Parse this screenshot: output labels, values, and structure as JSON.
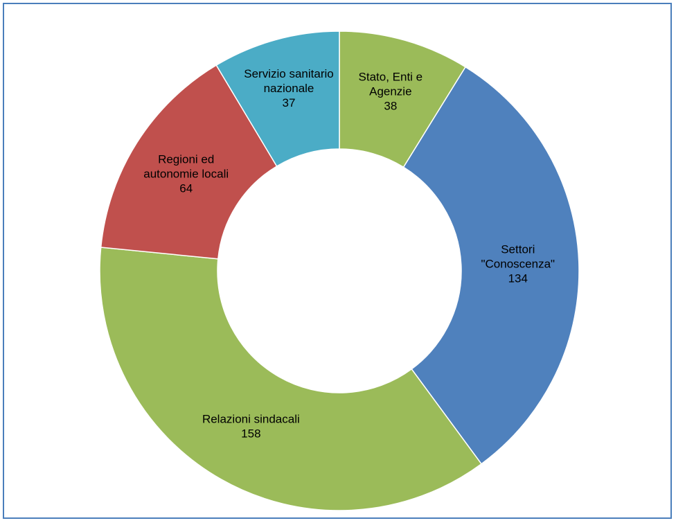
{
  "chart_data": {
    "type": "pie",
    "donut": true,
    "title": "",
    "start_angle_deg": 0,
    "direction": "clockwise",
    "slices": [
      {
        "label_lines": [
          "Stato, Enti e",
          "Agenzie"
        ],
        "value": 38,
        "value_label": "38",
        "color": "#9bbb59"
      },
      {
        "label_lines": [
          "Settori",
          "\"Conoscenza\""
        ],
        "value": 134,
        "value_label": "134",
        "color": "#4f81bd"
      },
      {
        "label_lines": [
          "Relazioni sindacali"
        ],
        "value": 158,
        "value_label": "158",
        "color": "#9bbb59"
      },
      {
        "label_lines": [
          "Regioni ed",
          "autonomie locali"
        ],
        "value": 64,
        "value_label": "64",
        "color": "#c0504d"
      },
      {
        "label_lines": [
          "Servizio sanitario",
          "nazionale"
        ],
        "value": 37,
        "value_label": "37",
        "color": "#4bacc6"
      }
    ]
  },
  "colors": {
    "frame_border": "#4a7ebb",
    "slice_separator": "#ffffff"
  }
}
